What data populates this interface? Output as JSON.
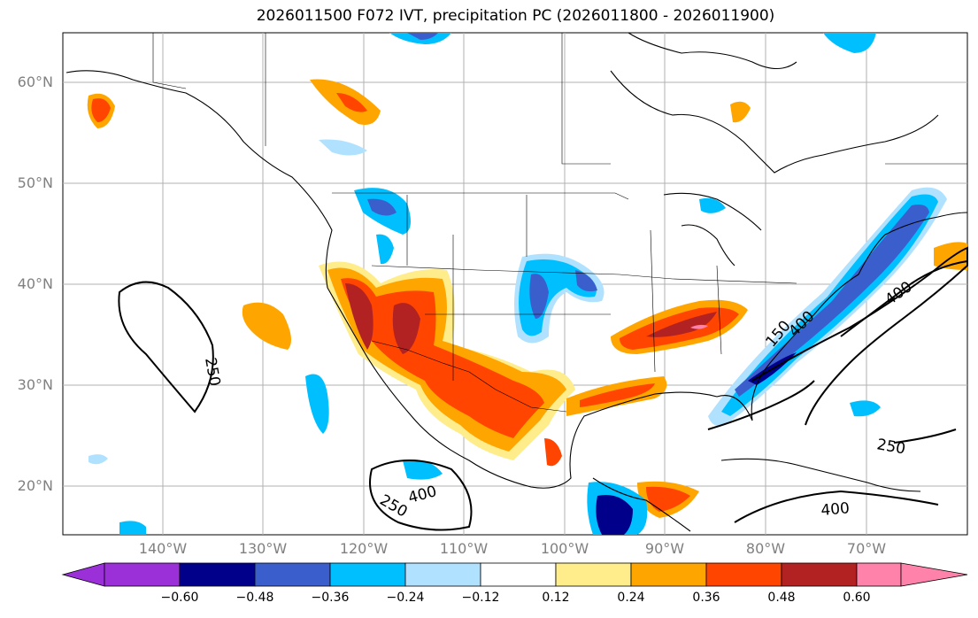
{
  "title": "2026011500 F072 IVT, precipitation PC (2026011800 - 2026011900)",
  "map": {
    "lat_labels": [
      "60°N",
      "50°N",
      "40°N",
      "30°N",
      "20°N"
    ],
    "lon_labels": [
      "140°W",
      "130°W",
      "120°W",
      "110°W",
      "100°W",
      "90°W",
      "80°W",
      "70°W"
    ],
    "contour_labels": [
      "250",
      "400",
      "250",
      "400",
      "250",
      "400",
      "150",
      "400"
    ]
  },
  "colorbar": {
    "tick_labels": [
      "−0.60",
      "−0.48",
      "−0.36",
      "−0.24",
      "−0.12",
      "0.12",
      "0.24",
      "0.36",
      "0.48",
      "0.60"
    ],
    "colors": [
      "#9b30d9",
      "#00008b",
      "#3a5fcd",
      "#00bfff",
      "#b0e2ff",
      "#ffffff",
      "#ffec8b",
      "#ffa500",
      "#ff4500",
      "#b22222",
      "#ff82ab"
    ]
  }
}
